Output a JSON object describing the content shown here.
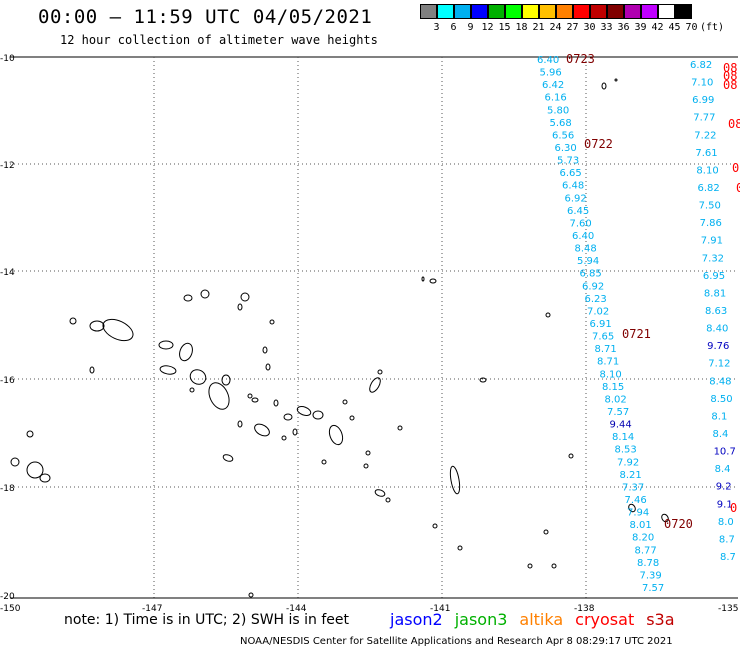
{
  "title": "00:00 – 11:59 UTC 04/05/2021",
  "subtitle": "12 hour collection of altimeter wave heights",
  "legend": {
    "colors": [
      "#808080",
      "#00ffff",
      "#00b0f0",
      "#0000ff",
      "#00b000",
      "#00ff00",
      "#ffff00",
      "#ffc000",
      "#ff8000",
      "#ff0000",
      "#c00000",
      "#800000",
      "#b000b0",
      "#c000ff",
      "#ffffff",
      "#000000"
    ],
    "labels": [
      "3",
      "6",
      "9",
      "12",
      "15",
      "18",
      "21",
      "24",
      "27",
      "30",
      "33",
      "36",
      "39",
      "42",
      "45",
      "70",
      "(ft)"
    ]
  },
  "axes": {
    "lat_labels": [
      "-10",
      "-12",
      "-14",
      "-16",
      "-18",
      "-20"
    ],
    "lon_labels": [
      "-150",
      "-147",
      "-144",
      "-141",
      "-138",
      "-135"
    ]
  },
  "times": [
    "0723",
    "0722",
    "0721",
    "0720"
  ],
  "track_main": {
    "values": [
      "6.40",
      "5.96",
      "6.42",
      "6.16",
      "5.80",
      "5.68",
      "6.56",
      "6.30",
      "5.73",
      "6.65",
      "6.48",
      "6.92",
      "6.45",
      "7.60",
      "6.40",
      "8.48",
      "5.94",
      "6.85",
      "6.92",
      "6.23",
      "7.02",
      "6.91",
      "7.65",
      "8.71",
      "8.71",
      "8.10",
      "8.15",
      "8.02",
      "7.57",
      "9.44",
      "8.14",
      "8.53",
      "7.92",
      "8.21",
      "7.37",
      "7.46",
      "7.94",
      "8.01",
      "8.20",
      "8.77",
      "8.78",
      "7.39",
      "7.57"
    ],
    "blue_values": [
      "9.44"
    ]
  },
  "track_right": {
    "values": [
      "6.82",
      "7.10",
      "6.99",
      "7.77",
      "7.22",
      "7.61",
      "8.10",
      "6.82",
      "7.50",
      "7.86",
      "7.91",
      "7.32",
      "6.95",
      "8.81",
      "8.63",
      "8.40",
      "9.76",
      "7.12",
      "8.48",
      "8.50",
      "8.1",
      "8.4",
      "10.7",
      "8.4",
      "9.2",
      "9.1",
      "8.0",
      "8.7",
      "8.7"
    ],
    "red_marks": [
      "08",
      "08",
      "08",
      "08",
      "0",
      "0",
      "0"
    ]
  },
  "note": "note: 1) Time is in UTC; 2) SWH is in feet",
  "satellites": [
    {
      "name": "jason2",
      "color": "#0000ff"
    },
    {
      "name": "jason3",
      "color": "#00b000"
    },
    {
      "name": "altika",
      "color": "#ff8000"
    },
    {
      "name": "cryosat",
      "color": "#ff0000"
    },
    {
      "name": "s3a",
      "color": "#c00000"
    }
  ],
  "credit": "NOAA/NESDIS Center for Satellite Applications and Research   Apr  8 08:29:17 UTC 2021"
}
